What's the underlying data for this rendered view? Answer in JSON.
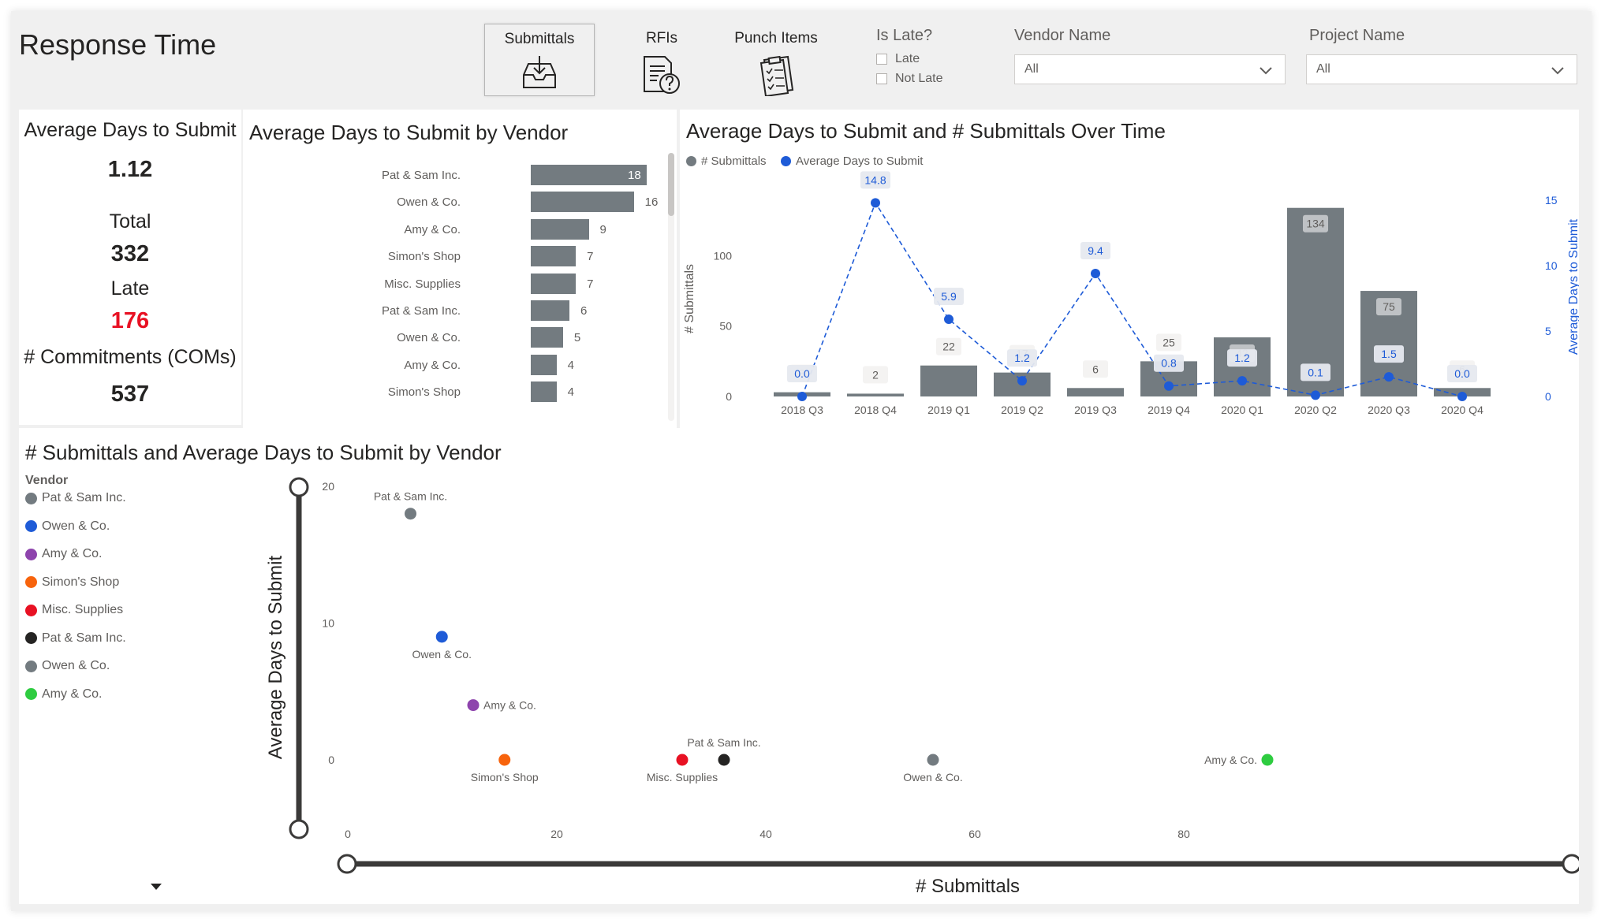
{
  "header": {
    "title": "Response Time"
  },
  "nav": {
    "submittals": "Submittals",
    "rfis": "RFIs",
    "punch_items": "Punch Items"
  },
  "filters": {
    "is_late": {
      "title": "Is Late?",
      "options": [
        "Late",
        "Not Late"
      ]
    },
    "vendor_name": {
      "title": "Vendor Name",
      "value": "All"
    },
    "project_name": {
      "title": "Project Name",
      "value": "All"
    }
  },
  "kpis": {
    "avg_days_label": "Average Days to Submit",
    "avg_days_value": "1.12",
    "total_label": "Total",
    "total_value": "332",
    "late_label": "Late",
    "late_value": "176",
    "commitments_label": "# Commitments (COMs)",
    "commitments_value": "537"
  },
  "colors": {
    "bar_gray": "#737b80",
    "line_blue": "#1e5bd7",
    "late_red": "#e81123",
    "axis_text": "#605e5c"
  },
  "chart_data": [
    {
      "type": "bar",
      "title": "Average Days to Submit by Vendor",
      "orientation": "horizontal",
      "categories": [
        "Pat & Sam Inc.",
        "Owen & Co.",
        "Amy & Co.",
        "Simon's Shop",
        "Misc. Supplies",
        "Pat & Sam Inc.",
        "Owen & Co.",
        "Amy & Co.",
        "Simon's Shop"
      ],
      "values": [
        18,
        16,
        9,
        7,
        7,
        6,
        5,
        4,
        4
      ],
      "xlim": [
        0,
        18
      ]
    },
    {
      "type": "bar",
      "title": "Average Days to Submit and # Submittals Over Time",
      "categories": [
        "2018 Q3",
        "2018 Q4",
        "2019 Q1",
        "2019 Q2",
        "2019 Q3",
        "2019 Q4",
        "2020 Q1",
        "2020 Q2",
        "2020 Q3",
        "2020 Q4"
      ],
      "series": [
        {
          "name": "# Submittals",
          "type": "bar",
          "values": [
            3,
            2,
            22,
            17,
            6,
            25,
            42,
            134,
            75,
            6
          ]
        },
        {
          "name": "Average Days to Submit",
          "type": "line",
          "values": [
            0.0,
            14.8,
            5.9,
            1.2,
            9.4,
            0.8,
            1.2,
            0.1,
            1.5,
            0.0
          ]
        }
      ],
      "ylabel": "# Submittals",
      "y2label": "Average Days to Submit",
      "ylim": [
        0,
        140
      ],
      "y2lim": [
        0,
        15
      ],
      "yticks": [
        0,
        50,
        100
      ],
      "y2ticks": [
        0,
        5,
        10,
        15
      ],
      "legend": "top-left"
    },
    {
      "type": "scatter",
      "title": "# Submittals and Average Days to Submit by Vendor",
      "legend_title": "Vendor",
      "xlabel": "# Submittals",
      "ylabel": "Average Days to Submit",
      "xlim": [
        0,
        90
      ],
      "ylim": [
        0,
        20
      ],
      "xticks": [
        0,
        20,
        40,
        60,
        80
      ],
      "yticks": [
        0,
        10,
        20
      ],
      "series": [
        {
          "name": "Pat & Sam Inc.",
          "color": "#737b80",
          "x": 6,
          "y": 18
        },
        {
          "name": "Owen & Co.",
          "color": "#1e5bd7",
          "x": 9,
          "y": 9
        },
        {
          "name": "Amy & Co.",
          "color": "#8e44ad",
          "x": 12,
          "y": 4
        },
        {
          "name": "Simon's Shop",
          "color": "#f7630c",
          "x": 15,
          "y": 0
        },
        {
          "name": "Misc. Supplies",
          "color": "#e81123",
          "x": 32,
          "y": 0
        },
        {
          "name": "Pat & Sam Inc.",
          "color": "#252423",
          "x": 36,
          "y": 0
        },
        {
          "name": "Owen & Co.",
          "color": "#737b80",
          "x": 56,
          "y": 0
        },
        {
          "name": "Amy & Co.",
          "color": "#2ecc40",
          "x": 88,
          "y": 0
        }
      ]
    }
  ]
}
